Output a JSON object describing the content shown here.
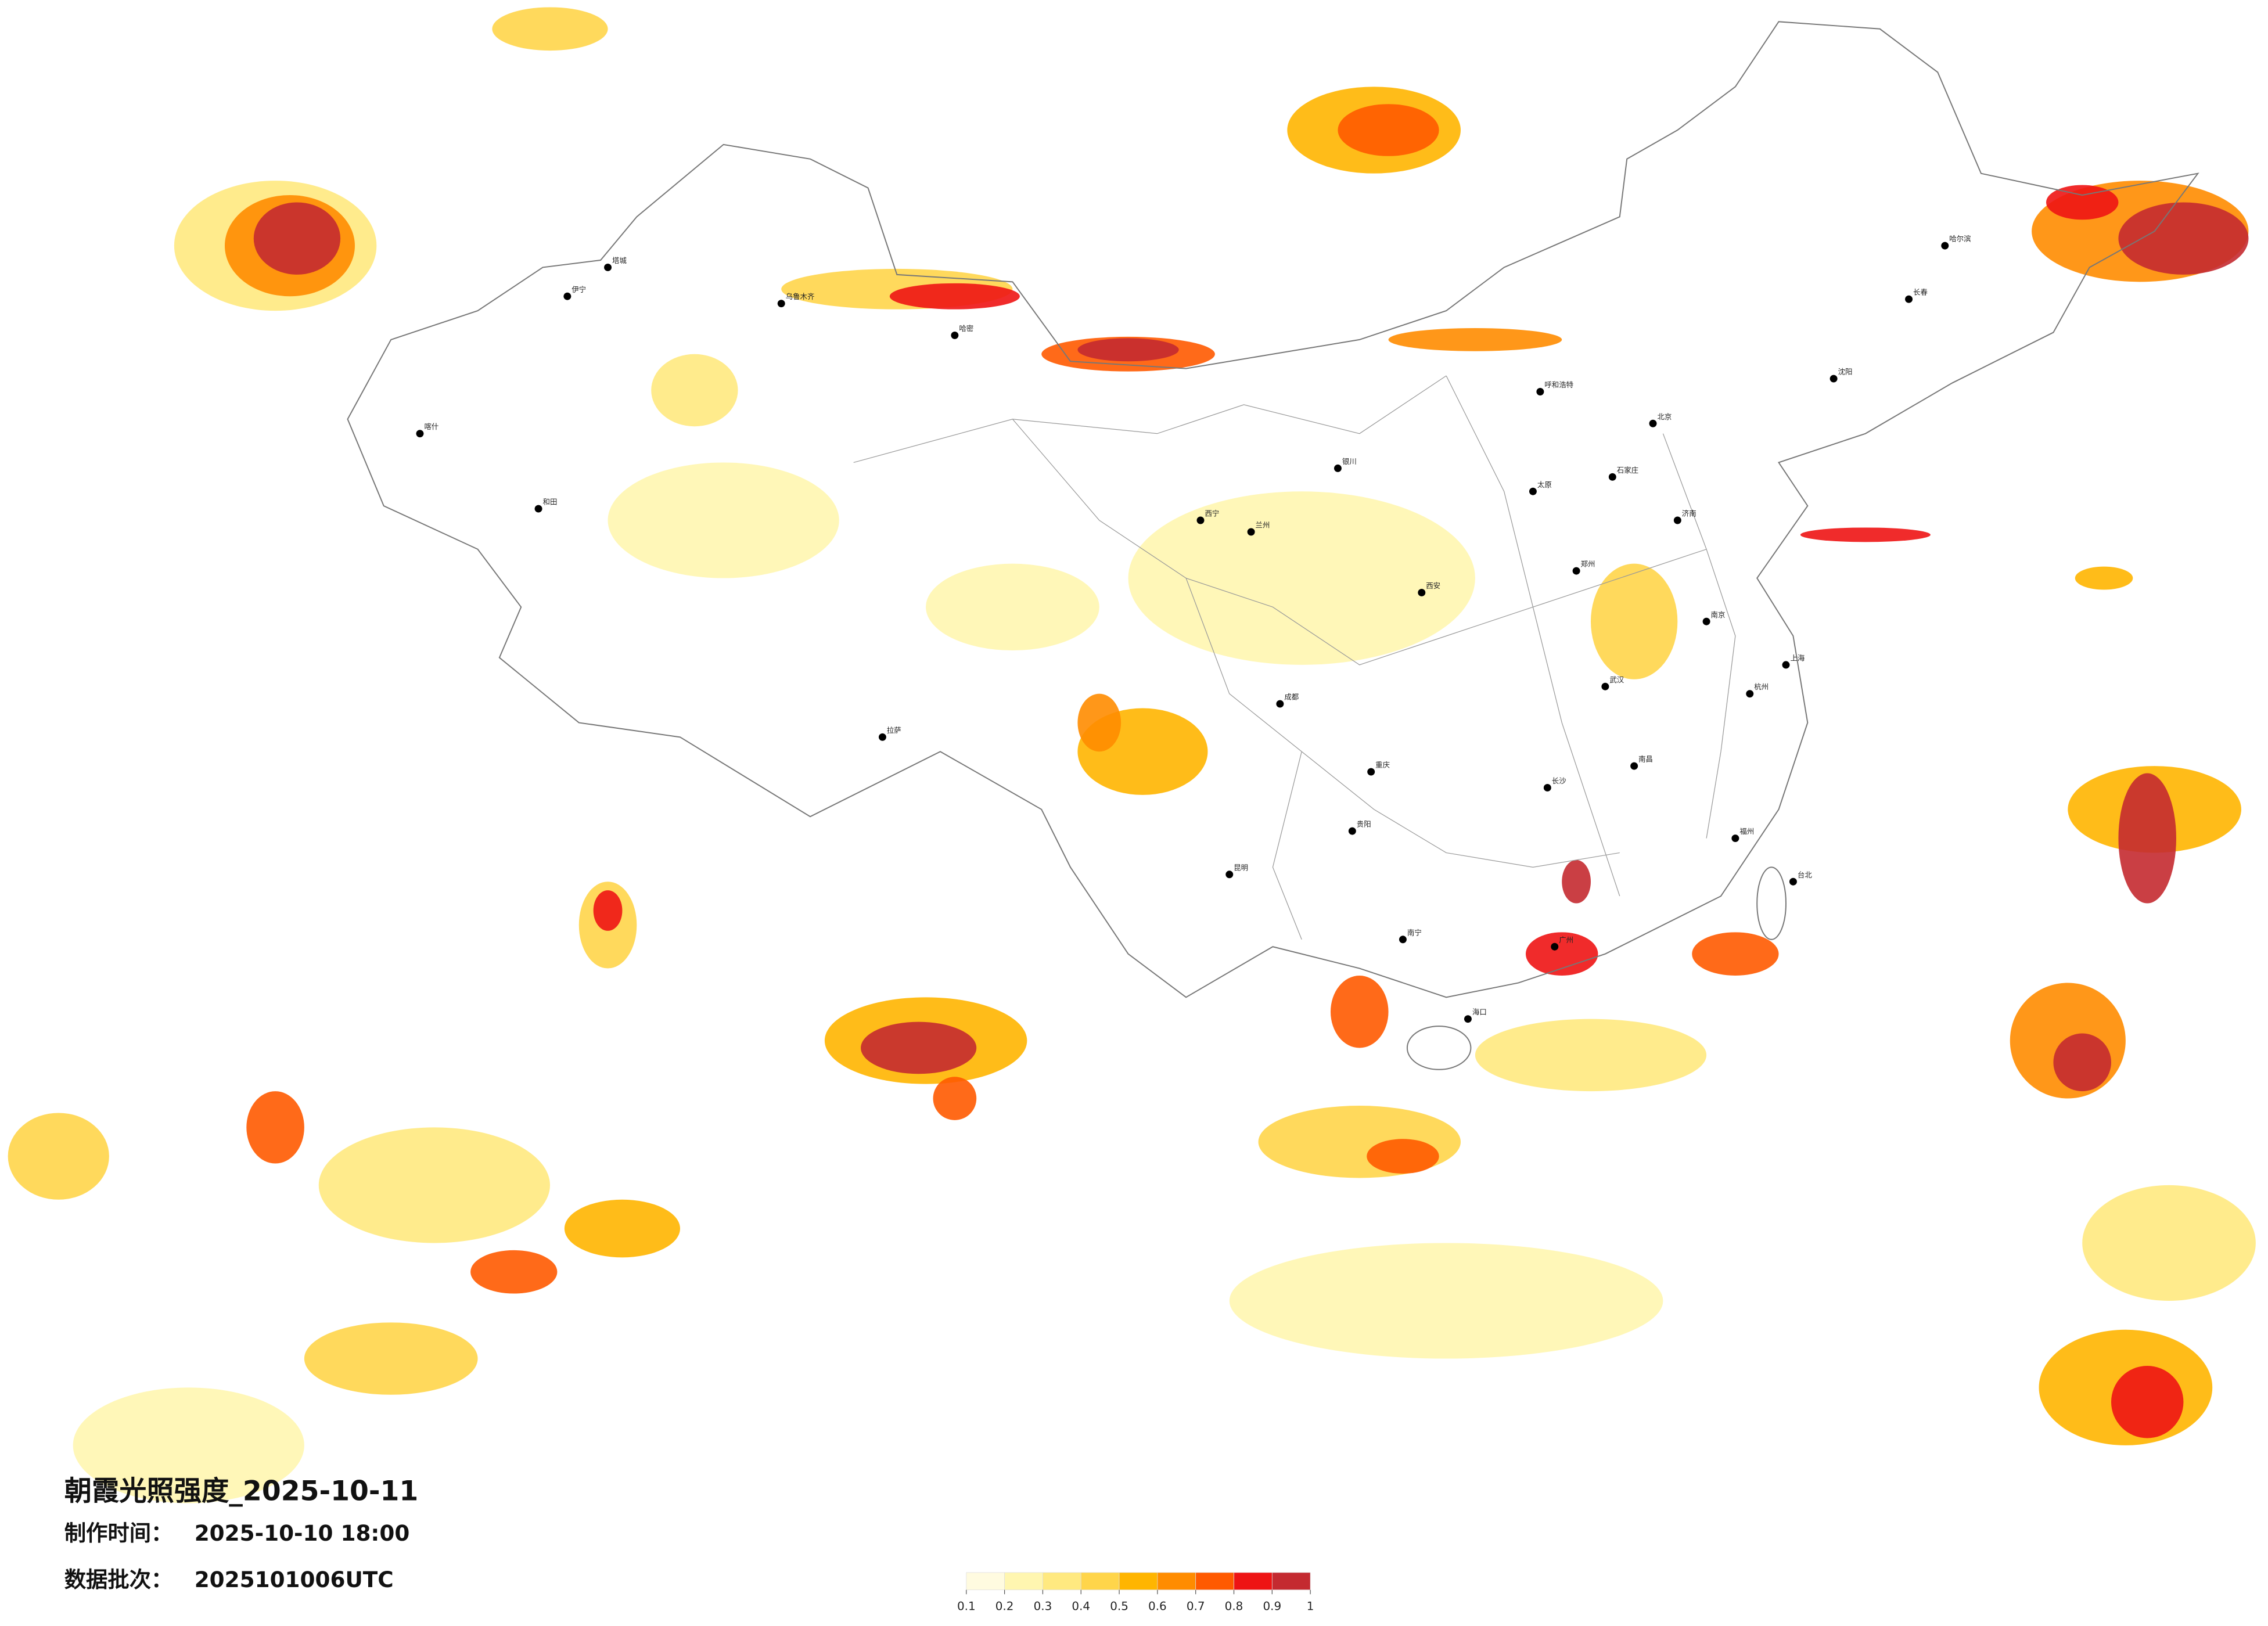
{
  "header": {
    "title": "朝霞光照强度_2025-10-11",
    "made_label": "制作时间：",
    "made_time": "2025-10-10 18:00",
    "batch_label": "数据批次：",
    "batch": "2025101006UTC"
  },
  "legend": {
    "ticks": [
      0.1,
      0.2,
      0.3,
      0.4,
      0.5,
      0.6,
      0.7,
      0.8,
      0.9,
      1
    ],
    "colors": [
      "#fffbe0",
      "#fff6b0",
      "#ffe980",
      "#ffd54a",
      "#ffb500",
      "#ff8c00",
      "#ff5a00",
      "#ee1414",
      "#c42a30"
    ]
  },
  "cities": [
    "哈尔滨",
    "长春",
    "沈阳",
    "北京",
    "石家庄",
    "太原",
    "济南",
    "郑州",
    "西安",
    "兰州",
    "银川",
    "呼和浩特",
    "乌鲁木齐",
    "拉萨",
    "西宁",
    "成都",
    "重庆",
    "武汉",
    "南京",
    "上海",
    "杭州",
    "长沙",
    "南昌",
    "福州",
    "广州",
    "南宁",
    "贵阳",
    "昆明",
    "海口",
    "台北",
    "喀什",
    "和田",
    "伊宁",
    "哈密",
    "塔城"
  ]
}
